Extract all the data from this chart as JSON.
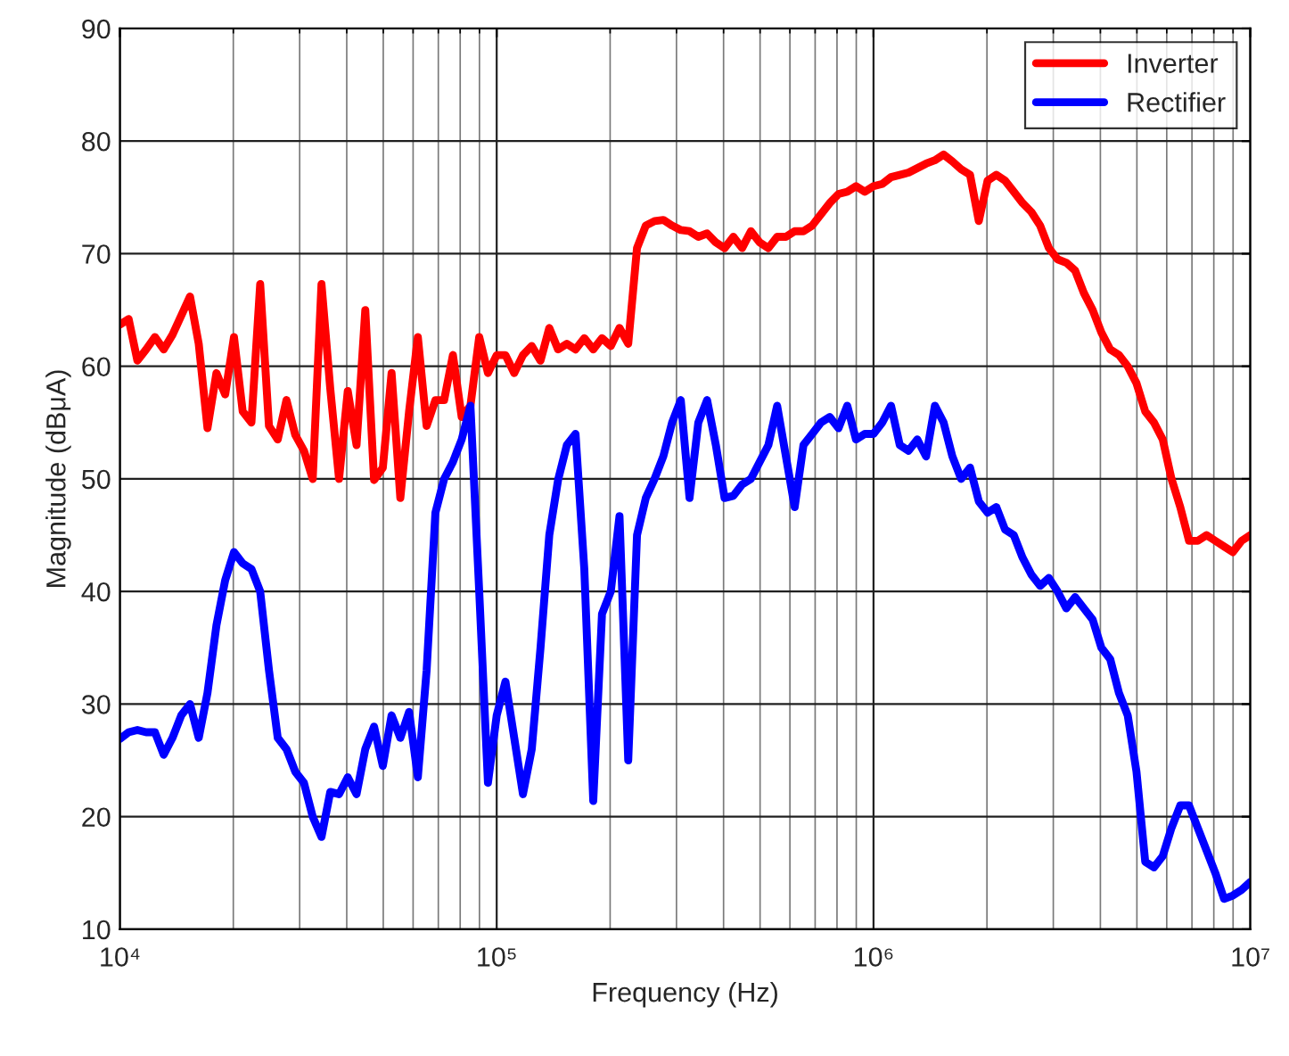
{
  "chart_data": {
    "type": "line",
    "xlabel": "Frequency (Hz)",
    "ylabel": "Magnitude (dBμA)",
    "log": "x",
    "grid": true,
    "legend": "top right",
    "line_style": "solid",
    "marker": "none",
    "xlim": [
      10000,
      10000000
    ],
    "ylim": [
      10,
      90
    ],
    "xticks": [
      {
        "value": 10000,
        "label": "10⁴"
      },
      {
        "value": 100000,
        "label": "10⁵"
      },
      {
        "value": 1000000,
        "label": "10⁶"
      },
      {
        "value": 10000000,
        "label": "10⁷"
      }
    ],
    "yticks": [
      10,
      20,
      30,
      40,
      50,
      60,
      70,
      80,
      90
    ],
    "x": [
      10000,
      10550,
      11130,
      11740,
      12390,
      13070,
      13790,
      14550,
      15350,
      16190,
      17080,
      18040,
      19030,
      20080,
      21180,
      22340,
      23570,
      24870,
      26240,
      27680,
      29200,
      30800,
      32490,
      34280,
      36170,
      38160,
      40250,
      42470,
      44800,
      47270,
      49870,
      52610,
      55500,
      58550,
      61770,
      65170,
      68760,
      72540,
      76530,
      80740,
      85180,
      89870,
      94800,
      100000,
      105500,
      111300,
      117400,
      123900,
      130700,
      137900,
      145500,
      153500,
      161900,
      170800,
      180400,
      190300,
      200800,
      211800,
      223400,
      235700,
      248700,
      262400,
      276800,
      292000,
      308000,
      324900,
      342800,
      361700,
      381600,
      402500,
      424700,
      448000,
      472700,
      498700,
      526100,
      555000,
      585500,
      617700,
      651700,
      687600,
      725400,
      765300,
      807400,
      851800,
      898700,
      948000,
      1000000,
      1055000,
      1113000,
      1174000,
      1239000,
      1307000,
      1379000,
      1455000,
      1535000,
      1619000,
      1708000,
      1804000,
      1903000,
      2008000,
      2118000,
      2234000,
      2357000,
      2487000,
      2624000,
      2768000,
      2920000,
      3080000,
      3249000,
      3428000,
      3617000,
      3816000,
      4025000,
      4247000,
      4480000,
      4727000,
      4987000,
      5261000,
      5550000,
      5855000,
      6177000,
      6517000,
      6876000,
      7254000,
      7653000,
      8074000,
      8518000,
      8987000,
      9480000,
      10000000
    ],
    "series": [
      {
        "name": "Inverter",
        "color": "#ff0000",
        "values": [
          63.7,
          64.2,
          60.5,
          61.5,
          62.6,
          61.5,
          62.8,
          64.5,
          66.2,
          62.0,
          54.5,
          59.4,
          57.5,
          62.6,
          56,
          55,
          67.3,
          54.7,
          53.5,
          57,
          53.9,
          52.5,
          50,
          67.3,
          58,
          50,
          57.8,
          53,
          65,
          49.9,
          51,
          59.4,
          48.3,
          56,
          62.6,
          54.7,
          57,
          57,
          61,
          55.5,
          56.5,
          62.6,
          59.4,
          61,
          61,
          59.4,
          61,
          61.8,
          60.5,
          63.4,
          61.5,
          62,
          61.5,
          62.5,
          61.5,
          62.5,
          61.8,
          63.4,
          62,
          70.5,
          72.5,
          72.9,
          73,
          72.5,
          72.1,
          72,
          71.5,
          71.8,
          71,
          70.5,
          71.5,
          70.5,
          72,
          71,
          70.5,
          71.5,
          71.5,
          72,
          72,
          72.5,
          73.5,
          74.5,
          75.3,
          75.5,
          76,
          75.5,
          76,
          76.2,
          76.8,
          77,
          77.2,
          77.6,
          78,
          78.3,
          78.8,
          78.2,
          77.5,
          77,
          72.9,
          76.5,
          77,
          76.5,
          75.5,
          74.5,
          73.7,
          72.5,
          70.5,
          69.5,
          69.2,
          68.5,
          66.5,
          65,
          63,
          61.5,
          61,
          60,
          58.5,
          56,
          55,
          53.5,
          50,
          47.5,
          44.5,
          44.5,
          45,
          44.5,
          44,
          43.5,
          44.5,
          45
        ]
      },
      {
        "name": "Rectifier",
        "color": "#0000ff",
        "values": [
          26.9,
          27.5,
          27.7,
          27.5,
          27.5,
          25.5,
          27,
          29,
          30,
          27,
          31,
          37,
          41,
          43.5,
          42.5,
          42,
          40,
          33,
          27,
          26,
          24,
          23,
          20,
          18.2,
          22.2,
          22,
          23.5,
          22,
          26,
          28,
          24.5,
          29,
          27,
          29.3,
          23.5,
          33,
          47,
          50,
          51.5,
          53.5,
          56.5,
          40,
          23,
          29,
          32,
          27,
          22,
          26,
          35,
          45,
          49.9,
          53,
          54,
          42,
          21.4,
          38,
          40,
          46.7,
          25,
          45,
          48.3,
          50,
          52,
          55,
          57,
          48.3,
          55,
          57,
          53,
          48.3,
          48.5,
          49.5,
          50,
          51.5,
          53,
          56.5,
          52,
          47.5,
          53,
          54,
          55,
          55.5,
          54.5,
          56.5,
          53.5,
          54,
          54,
          55,
          56.5,
          53,
          52.5,
          53.5,
          52,
          56.5,
          55,
          52,
          50,
          51,
          48,
          47,
          47.5,
          45.5,
          45,
          43,
          41.5,
          40.5,
          41.2,
          40,
          38.5,
          39.5,
          38.5,
          37.5,
          35,
          34,
          31,
          29,
          24,
          16,
          15.5,
          16.5,
          19,
          21,
          21,
          19,
          17,
          15,
          12.7,
          13,
          13.5,
          14.2
        ]
      }
    ]
  }
}
